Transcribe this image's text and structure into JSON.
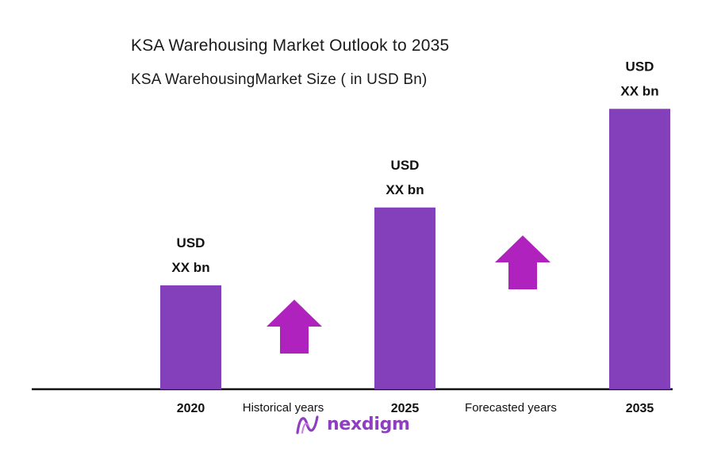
{
  "chart_data": {
    "type": "bar",
    "title": "KSA Warehousing Market Outlook to 2035",
    "subtitle": "KSA WarehousingMarket Size  ( in USD Bn)",
    "categories": [
      "2020",
      "2025",
      "2035"
    ],
    "bar_labels": [
      [
        "USD",
        "XX bn"
      ],
      [
        "USD",
        "XX bn"
      ],
      [
        "USD",
        "XX bn"
      ]
    ],
    "values": [
      1.0,
      1.75,
      2.7
    ],
    "period_labels": [
      "Historical years",
      "Forecasted years"
    ],
    "colors": {
      "bar": "#8340ba",
      "arrow": "#b022be",
      "axis": "#111111",
      "logo": "#8e3fbf"
    }
  },
  "logo": {
    "text": "nexdigm",
    "icon": "nexdigm-wave-icon"
  }
}
